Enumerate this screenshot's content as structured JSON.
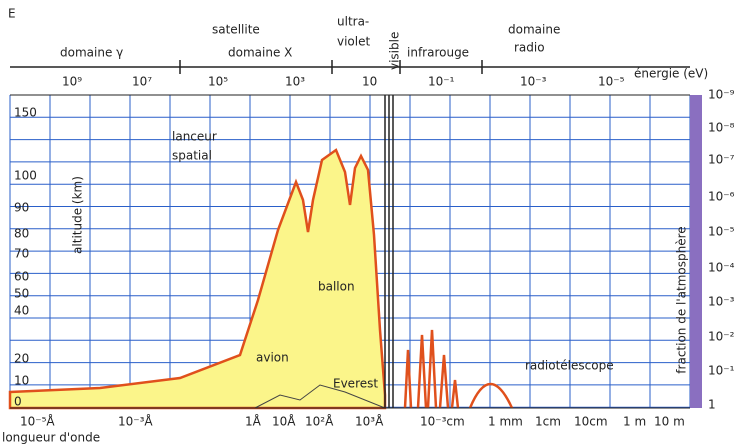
{
  "header": {
    "corner": "E",
    "satellite": "satellite"
  },
  "domains": [
    "domaine γ",
    "domaine X",
    "ultra-",
    "violet",
    "visible",
    "infrarouge",
    "domaine",
    "radio"
  ],
  "energy": {
    "label": "énergie (eV)",
    "ticks": [
      "10⁹",
      "10⁷",
      "10⁵",
      "10³",
      "10",
      "10⁻¹",
      "10⁻³",
      "10⁻⁵"
    ]
  },
  "altitude": {
    "label": "altitude (km)",
    "ticks": [
      "150",
      "100",
      "90",
      "80",
      "70",
      "60",
      "50",
      "40",
      "20",
      "10",
      "0"
    ]
  },
  "fraction": {
    "label": "fraction de l'atmosphère",
    "ticks": [
      "10⁻⁹",
      "10⁻⁸",
      "10⁻⁷",
      "10⁻⁶",
      "10⁻⁵",
      "10⁻⁴",
      "10⁻³",
      "10⁻²",
      "10⁻¹",
      "1"
    ]
  },
  "wavelength": {
    "label": "longueur d'onde",
    "ticks": [
      "10⁻⁵Å",
      "10⁻³Å",
      "1Å",
      "10Å",
      "10²Å",
      "10³Å",
      "10⁻³cm",
      "1 mm",
      "1cm",
      "10cm",
      "1 m",
      "10 m"
    ]
  },
  "annotations": [
    "lanceur",
    "spatial",
    "ballon",
    "avion",
    "Everest",
    "radiotélescope"
  ]
}
